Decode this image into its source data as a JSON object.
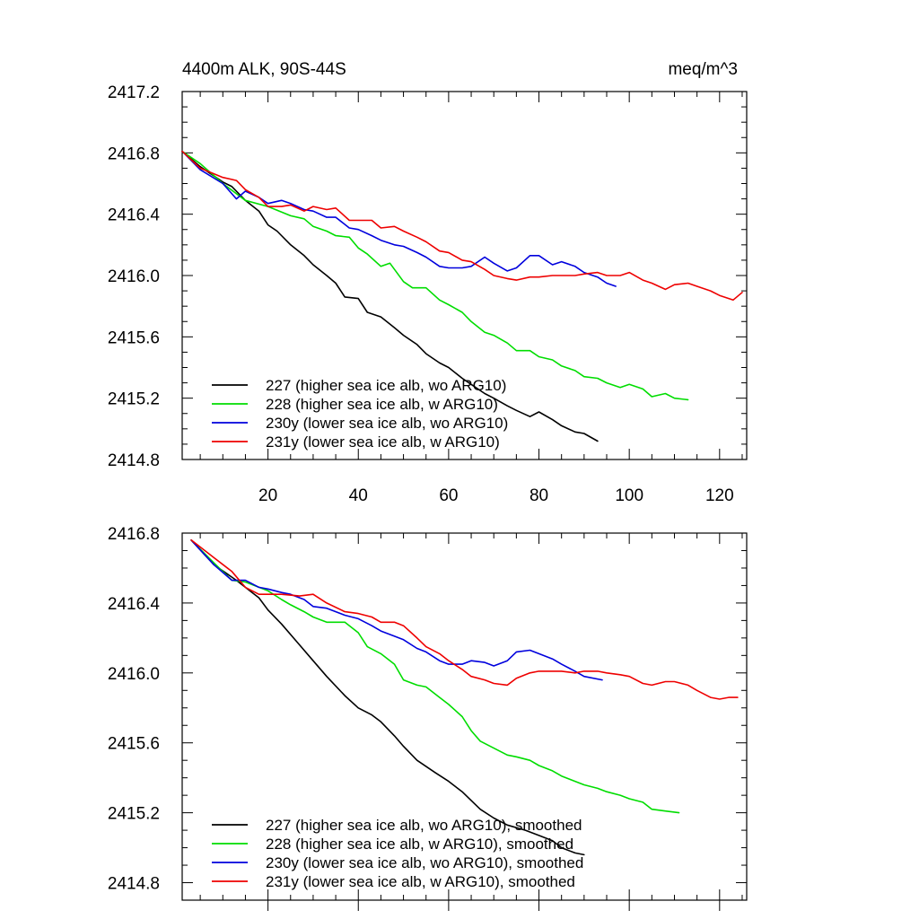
{
  "chart_data": [
    {
      "type": "line",
      "title": "4400m ALK, 90S-44S",
      "units": "meq/m^3",
      "xlabel": "",
      "ylabel": "",
      "xlim": [
        1,
        126
      ],
      "ylim": [
        2414.8,
        2417.2
      ],
      "xticks": [
        20,
        40,
        60,
        80,
        100,
        120
      ],
      "xtick_labels": [
        "20",
        "40",
        "60",
        "80",
        "100",
        "120"
      ],
      "yticks": [
        2414.8,
        2415.2,
        2415.6,
        2416.0,
        2416.4,
        2416.8,
        2417.2
      ],
      "ytick_labels": [
        "2414.8",
        "2415.2",
        "2415.6",
        "2416.0",
        "2416.4",
        "2416.8",
        "2417.2"
      ],
      "series": [
        {
          "name": "227 (higher sea ice alb, wo ARG10)",
          "color": "#000000",
          "x": [
            1,
            5,
            10,
            12,
            15,
            18,
            20,
            22,
            25,
            28,
            30,
            33,
            35,
            37,
            40,
            42,
            45,
            48,
            50,
            53,
            55,
            58,
            60,
            63,
            65,
            68,
            70,
            73,
            75,
            78,
            80,
            83,
            85,
            88,
            90,
            93
          ],
          "y": [
            2416.81,
            2416.71,
            2416.61,
            2416.58,
            2416.49,
            2416.42,
            2416.33,
            2416.29,
            2416.2,
            2416.13,
            2416.07,
            2416.0,
            2415.95,
            2415.86,
            2415.85,
            2415.76,
            2415.73,
            2415.66,
            2415.61,
            2415.55,
            2415.49,
            2415.43,
            2415.4,
            2415.33,
            2415.29,
            2415.23,
            2415.2,
            2415.15,
            2415.12,
            2415.08,
            2415.11,
            2415.06,
            2415.02,
            2414.98,
            2414.97,
            2414.92
          ]
        },
        {
          "name": "228 (higher sea ice alb, w ARG10)",
          "color": "#00dd00",
          "x": [
            1,
            5,
            10,
            15,
            20,
            25,
            28,
            30,
            33,
            35,
            38,
            40,
            42,
            45,
            47,
            50,
            52,
            55,
            58,
            60,
            63,
            65,
            68,
            70,
            73,
            75,
            78,
            80,
            83,
            85,
            88,
            90,
            93,
            95,
            98,
            100,
            103,
            105,
            108,
            110,
            113
          ],
          "y": [
            2416.81,
            2416.73,
            2416.6,
            2416.49,
            2416.45,
            2416.39,
            2416.37,
            2416.32,
            2416.29,
            2416.26,
            2416.25,
            2416.18,
            2416.14,
            2416.06,
            2416.08,
            2415.96,
            2415.92,
            2415.92,
            2415.84,
            2415.81,
            2415.76,
            2415.7,
            2415.63,
            2415.61,
            2415.56,
            2415.51,
            2415.51,
            2415.47,
            2415.45,
            2415.41,
            2415.38,
            2415.34,
            2415.33,
            2415.3,
            2415.27,
            2415.29,
            2415.26,
            2415.21,
            2415.23,
            2415.2,
            2415.19
          ]
        },
        {
          "name": "230y (lower sea ice alb, wo ARG10)",
          "color": "#0000dd",
          "x": [
            1,
            5,
            10,
            13,
            15,
            18,
            20,
            23,
            25,
            28,
            30,
            33,
            35,
            38,
            40,
            43,
            45,
            48,
            50,
            53,
            55,
            58,
            60,
            63,
            65,
            68,
            70,
            73,
            75,
            78,
            80,
            83,
            85,
            88,
            90,
            93,
            95,
            97
          ],
          "y": [
            2416.81,
            2416.69,
            2416.6,
            2416.5,
            2416.55,
            2416.51,
            2416.47,
            2416.49,
            2416.47,
            2416.43,
            2416.42,
            2416.38,
            2416.38,
            2416.31,
            2416.3,
            2416.26,
            2416.23,
            2416.2,
            2416.19,
            2416.15,
            2416.12,
            2416.06,
            2416.05,
            2416.05,
            2416.06,
            2416.12,
            2416.08,
            2416.03,
            2416.05,
            2416.13,
            2416.13,
            2416.07,
            2416.09,
            2416.06,
            2416.02,
            2415.99,
            2415.95,
            2415.93
          ]
        },
        {
          "name": "231y (lower sea ice alb, w ARG10)",
          "color": "#ee0000",
          "x": [
            1,
            5,
            10,
            13,
            15,
            18,
            20,
            23,
            25,
            28,
            30,
            33,
            35,
            38,
            40,
            43,
            45,
            48,
            50,
            53,
            55,
            58,
            60,
            63,
            65,
            68,
            70,
            73,
            75,
            78,
            80,
            83,
            85,
            88,
            90,
            93,
            95,
            98,
            100,
            103,
            105,
            108,
            110,
            113,
            115,
            118,
            120,
            123,
            125
          ],
          "y": [
            2416.81,
            2416.7,
            2416.64,
            2416.62,
            2416.56,
            2416.51,
            2416.45,
            2416.45,
            2416.46,
            2416.42,
            2416.45,
            2416.43,
            2416.44,
            2416.36,
            2416.36,
            2416.36,
            2416.31,
            2416.32,
            2416.29,
            2416.25,
            2416.22,
            2416.16,
            2416.15,
            2416.1,
            2416.09,
            2416.04,
            2416.0,
            2415.98,
            2415.97,
            2415.99,
            2415.99,
            2416.0,
            2416.0,
            2416.0,
            2416.01,
            2416.02,
            2416.0,
            2416.0,
            2416.02,
            2415.97,
            2415.95,
            2415.91,
            2415.94,
            2415.95,
            2415.93,
            2415.9,
            2415.87,
            2415.84,
            2415.89
          ]
        }
      ]
    },
    {
      "type": "line",
      "title": "",
      "xlabel": "",
      "ylabel": "",
      "xlim": [
        1,
        126
      ],
      "ylim": [
        2414.7,
        2416.8
      ],
      "xticks": [
        20,
        40,
        60,
        80,
        100,
        120
      ],
      "yticks": [
        2414.8,
        2415.2,
        2415.6,
        2416.0,
        2416.4,
        2416.8
      ],
      "ytick_labels": [
        "2414.8",
        "2415.2",
        "2415.6",
        "2416.0",
        "2416.4",
        "2416.8"
      ],
      "series": [
        {
          "name": "227 (higher sea ice alb, wo ARG10), smoothed",
          "color": "#000000",
          "x": [
            3,
            8,
            13,
            18,
            20,
            23,
            27,
            30,
            33,
            37,
            40,
            43,
            45,
            48,
            50,
            53,
            57,
            60,
            63,
            67,
            70,
            73,
            77,
            80,
            83,
            85,
            88,
            90
          ],
          "y": [
            2416.76,
            2416.62,
            2416.53,
            2416.43,
            2416.36,
            2416.28,
            2416.16,
            2416.07,
            2415.98,
            2415.87,
            2415.8,
            2415.76,
            2415.72,
            2415.64,
            2415.58,
            2415.5,
            2415.43,
            2415.38,
            2415.32,
            2415.22,
            2415.17,
            2415.13,
            2415.1,
            2415.07,
            2415.04,
            2415.0,
            2414.97,
            2414.96
          ]
        },
        {
          "name": "228 (higher sea ice alb, w ARG10), smoothed",
          "color": "#00dd00",
          "x": [
            3,
            8,
            12,
            15,
            20,
            23,
            25,
            28,
            30,
            33,
            37,
            40,
            42,
            45,
            48,
            50,
            53,
            55,
            58,
            60,
            63,
            65,
            67,
            70,
            73,
            75,
            78,
            80,
            83,
            85,
            88,
            90,
            93,
            95,
            98,
            100,
            103,
            105,
            108,
            111
          ],
          "y": [
            2416.76,
            2416.63,
            2416.53,
            2416.52,
            2416.47,
            2416.42,
            2416.39,
            2416.35,
            2416.32,
            2416.29,
            2416.29,
            2416.23,
            2416.15,
            2416.11,
            2416.05,
            2415.96,
            2415.93,
            2415.92,
            2415.86,
            2415.82,
            2415.75,
            2415.67,
            2415.61,
            2415.57,
            2415.53,
            2415.52,
            2415.5,
            2415.47,
            2415.44,
            2415.41,
            2415.38,
            2415.36,
            2415.34,
            2415.32,
            2415.3,
            2415.28,
            2415.26,
            2415.22,
            2415.21,
            2415.2
          ]
        },
        {
          "name": "230y (lower sea ice alb, wo ARG10), smoothed",
          "color": "#0000dd",
          "x": [
            3,
            8,
            12,
            15,
            18,
            20,
            23,
            25,
            28,
            30,
            33,
            37,
            40,
            43,
            45,
            48,
            50,
            53,
            55,
            58,
            60,
            63,
            65,
            68,
            70,
            73,
            75,
            78,
            80,
            83,
            85,
            88,
            90,
            94
          ],
          "y": [
            2416.76,
            2416.62,
            2416.53,
            2416.53,
            2416.49,
            2416.48,
            2416.46,
            2416.45,
            2416.42,
            2416.38,
            2416.37,
            2416.33,
            2416.31,
            2416.27,
            2416.24,
            2416.21,
            2416.19,
            2416.14,
            2416.12,
            2416.07,
            2416.05,
            2416.05,
            2416.07,
            2416.06,
            2416.04,
            2416.07,
            2416.12,
            2416.13,
            2416.11,
            2416.08,
            2416.05,
            2416.01,
            2415.98,
            2415.96
          ]
        },
        {
          "name": "231y (lower sea ice alb, w ARG10), smoothed",
          "color": "#ee0000",
          "x": [
            3,
            8,
            12,
            15,
            18,
            20,
            23,
            27,
            30,
            33,
            37,
            40,
            43,
            45,
            48,
            50,
            53,
            55,
            58,
            60,
            63,
            65,
            68,
            70,
            73,
            75,
            78,
            80,
            83,
            85,
            88,
            90,
            93,
            95,
            98,
            100,
            103,
            105,
            108,
            110,
            113,
            115,
            118,
            120,
            122,
            124
          ],
          "y": [
            2416.76,
            2416.66,
            2416.58,
            2416.49,
            2416.45,
            2416.45,
            2416.45,
            2416.44,
            2416.45,
            2416.4,
            2416.35,
            2416.34,
            2416.32,
            2416.29,
            2416.29,
            2416.27,
            2416.2,
            2416.15,
            2416.11,
            2416.07,
            2416.02,
            2415.98,
            2415.96,
            2415.94,
            2415.93,
            2415.97,
            2416.0,
            2416.01,
            2416.01,
            2416.01,
            2416.0,
            2416.01,
            2416.01,
            2416.0,
            2415.99,
            2415.98,
            2415.94,
            2415.93,
            2415.95,
            2415.95,
            2415.93,
            2415.9,
            2415.86,
            2415.85,
            2415.86,
            2415.86
          ]
        }
      ]
    }
  ]
}
